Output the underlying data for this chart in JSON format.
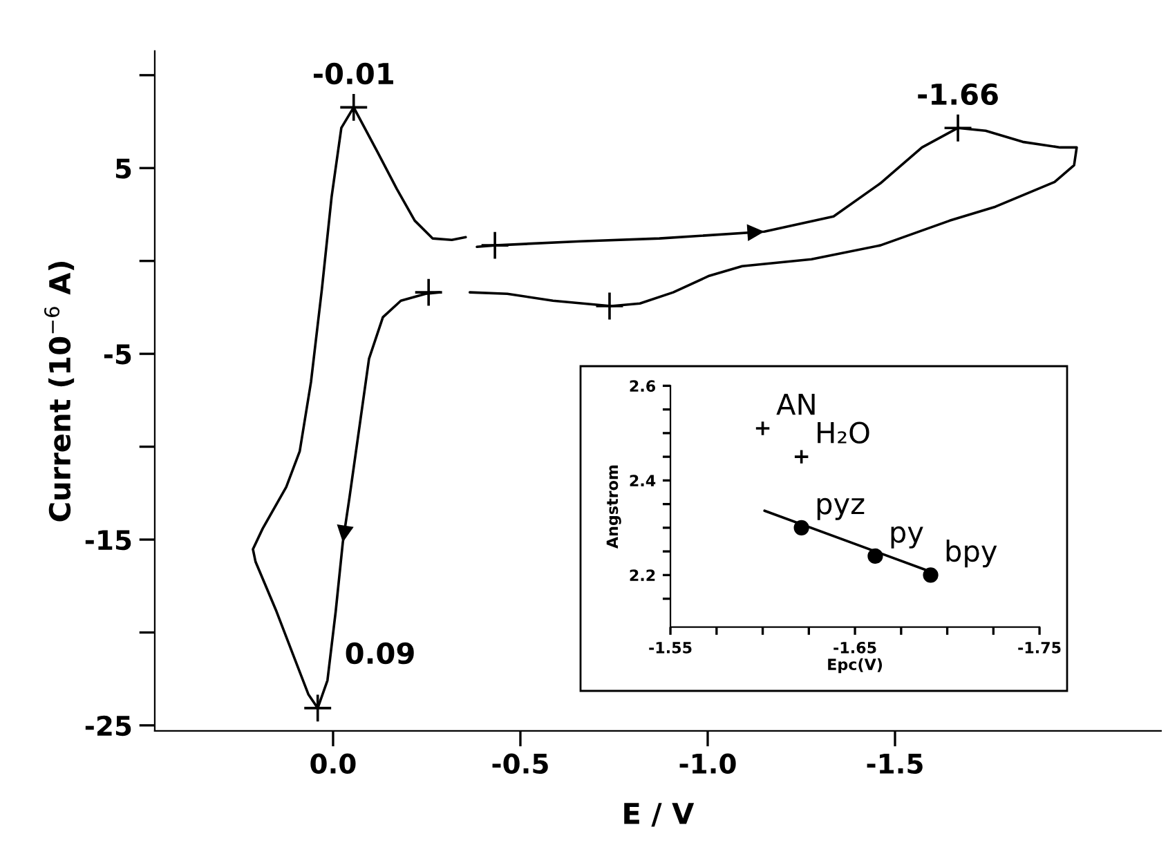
{
  "chart_data": [
    {
      "type": "line",
      "xlabel": "E / V",
      "ylabel": "Current (10$^{−6}$ A)",
      "xlim": [
        0.476,
        -2.21
      ],
      "ylim": [
        -25.3,
        11.3
      ],
      "xticks": [
        {
          "value": 0,
          "label": "0.0"
        },
        -0.5,
        {
          "value": -1,
          "label": "-1.0"
        },
        -1.5
      ],
      "yticks": [
        {
          "value": 10,
          "label": null
        },
        5,
        {
          "value": 0,
          "label": null
        },
        -5,
        {
          "value": -10,
          "label": null
        },
        -15,
        {
          "value": -20,
          "label": null
        },
        -25
      ],
      "grid": false,
      "legend": false,
      "series": [
        {
          "color": "#000000",
          "x": [
            -0.384,
            -0.432,
            -0.661,
            -0.871,
            -1.151,
            -1.336,
            -1.461,
            -1.572,
            -1.668,
            -1.742,
            -1.841,
            -1.941,
            -1.985,
            -1.978,
            -1.926,
            -1.768,
            -1.646,
            -1.461,
            -1.277,
            -1.092,
            -1.004,
            -0.908,
            -0.819,
            -0.742,
            -0.587,
            -0.465,
            -0.365,
            -0.325,
            -0.284,
            -0.247,
            -0.181,
            -0.133,
            -0.096,
            -0.07,
            -0.044,
            -0.026,
            -0.007,
            0.015,
            0.041,
            0.066,
            0.103,
            0.151,
            0.207,
            0.214,
            0.188,
            0.125,
            0.089,
            0.059,
            0.03,
            0.004,
            -0.022,
            -0.055,
            -0.118,
            -0.17,
            -0.218,
            -0.266,
            -0.317,
            -0.354
          ],
          "values": [
            0.76,
            0.84,
            1.06,
            1.21,
            1.58,
            2.4,
            4.18,
            6.11,
            7.16,
            7.01,
            6.41,
            6.11,
            6.11,
            5.15,
            4.25,
            2.92,
            2.17,
            0.84,
            0.09,
            -0.28,
            -0.8,
            -1.69,
            -2.29,
            -2.43,
            -2.14,
            -1.77,
            -1.69,
            null,
            -1.69,
            -1.77,
            -2.14,
            -3.03,
            -5.26,
            -8.98,
            -12.7,
            -15.15,
            -18.87,
            -22.58,
            -24.07,
            -23.33,
            -21.39,
            -18.87,
            -16.19,
            -15.52,
            -14.41,
            -12.17,
            -10.24,
            -6.52,
            -1.54,
            3.44,
            7.16,
            8.27,
            5.89,
            3.88,
            2.17,
            1.21,
            1.13,
            1.28
          ]
        },
        {
          "type": "scatter",
          "marker": "cross",
          "color": "#000000",
          "x": [
            -0.432,
            -0.055,
            -1.668,
            -0.255,
            -0.738,
            0.041
          ],
          "values": [
            0.84,
            8.27,
            7.16,
            -1.69,
            -2.43,
            -24.07
          ]
        }
      ],
      "annotations": [
        {
          "text": "-0.01",
          "x": -0.055,
          "y": 8.27
        },
        {
          "text": "-1.66",
          "x": -1.668,
          "y": 7.16
        },
        {
          "text": "0.09",
          "x": 0.041,
          "y": -24.07
        }
      ]
    },
    {
      "type": "scatter",
      "xlabel": "Epc(V)",
      "ylabel": "Angstrom",
      "xlim": [
        -1.55,
        -1.75
      ],
      "ylim": [
        2.09,
        2.6
      ],
      "xticks": [
        -1.55,
        {
          "value": -1.575,
          "label": null
        },
        {
          "value": -1.6,
          "label": null
        },
        {
          "value": -1.625,
          "label": null
        },
        -1.65,
        {
          "value": -1.675,
          "label": null
        },
        {
          "value": -1.7,
          "label": null
        },
        {
          "value": -1.725,
          "label": null
        },
        -1.75
      ],
      "yticks": [
        {
          "value": 2.15,
          "label": null
        },
        2.2,
        {
          "value": 2.25,
          "label": null
        },
        {
          "value": 2.3,
          "label": null
        },
        {
          "value": 2.35,
          "label": null
        },
        2.4,
        {
          "value": 2.45,
          "label": null
        },
        {
          "value": 2.5,
          "label": null
        },
        {
          "value": 2.55,
          "label": null
        },
        2.6
      ],
      "grid": false,
      "legend": false,
      "series": [
        {
          "name": "AN",
          "marker": "cross",
          "color": "#000000",
          "x": [
            -1.6
          ],
          "values": [
            2.51
          ]
        },
        {
          "name": "H₂O",
          "marker": "cross",
          "color": "#000000",
          "x": [
            -1.621
          ],
          "values": [
            2.45
          ]
        },
        {
          "type": "line",
          "color": "#000000",
          "x": [
            -1.601,
            -1.691
          ],
          "values": [
            2.336,
            2.207
          ]
        },
        {
          "name": "pyz",
          "marker": "circle",
          "color": "#000000",
          "x": [
            -1.621
          ],
          "values": [
            2.3
          ]
        },
        {
          "name": "py",
          "marker": "circle",
          "color": "#000000",
          "x": [
            -1.661
          ],
          "values": [
            2.24
          ]
        },
        {
          "name": "bpy",
          "marker": "circle",
          "color": "#000000",
          "x": [
            -1.691
          ],
          "values": [
            2.2
          ]
        }
      ]
    }
  ]
}
